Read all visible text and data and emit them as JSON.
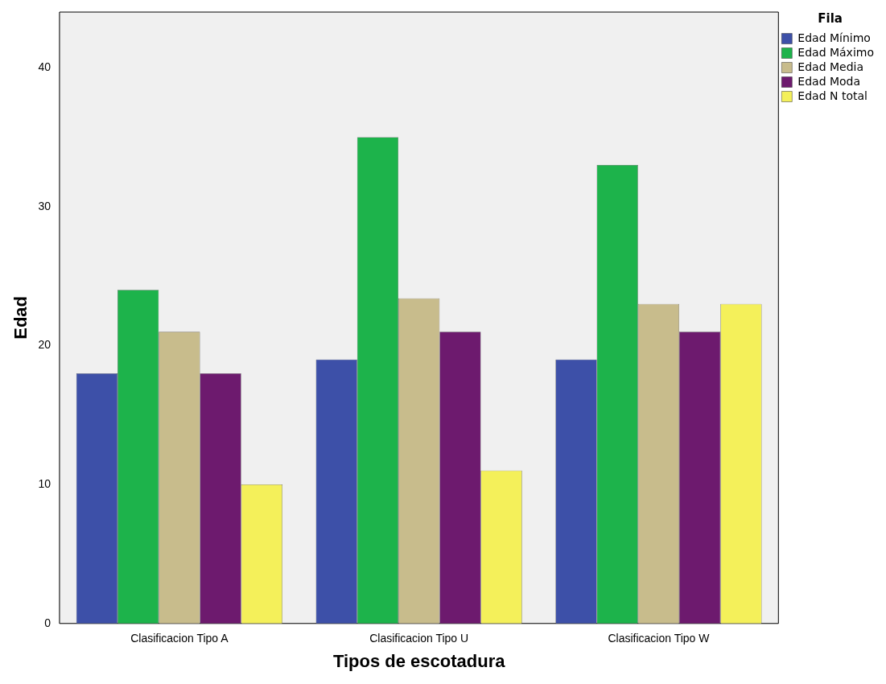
{
  "chart_data": {
    "type": "bar",
    "xlabel": "Tipos de escotadura",
    "ylabel": "Edad",
    "legend_title": "Fila",
    "categories": [
      "Clasificacion Tipo A",
      "Clasificacion Tipo U",
      "Clasificacion Tipo W"
    ],
    "series": [
      {
        "name": "Edad Mínimo",
        "color": "#3d50a8",
        "values": [
          18,
          19,
          19
        ]
      },
      {
        "name": "Edad Máximo",
        "color": "#1db34b",
        "values": [
          24,
          35,
          33
        ]
      },
      {
        "name": "Edad Media",
        "color": "#c8bc8c",
        "values": [
          21,
          23.4,
          23
        ]
      },
      {
        "name": "Edad Moda",
        "color": "#6d1a6e",
        "values": [
          18,
          21,
          21
        ]
      },
      {
        "name": "Edad N total",
        "color": "#f4f05a",
        "values": [
          10,
          11,
          23
        ]
      }
    ],
    "ylim": [
      0,
      44
    ],
    "yticks": [
      0,
      10,
      20,
      30,
      40
    ],
    "grid": false,
    "legend": "top right"
  }
}
